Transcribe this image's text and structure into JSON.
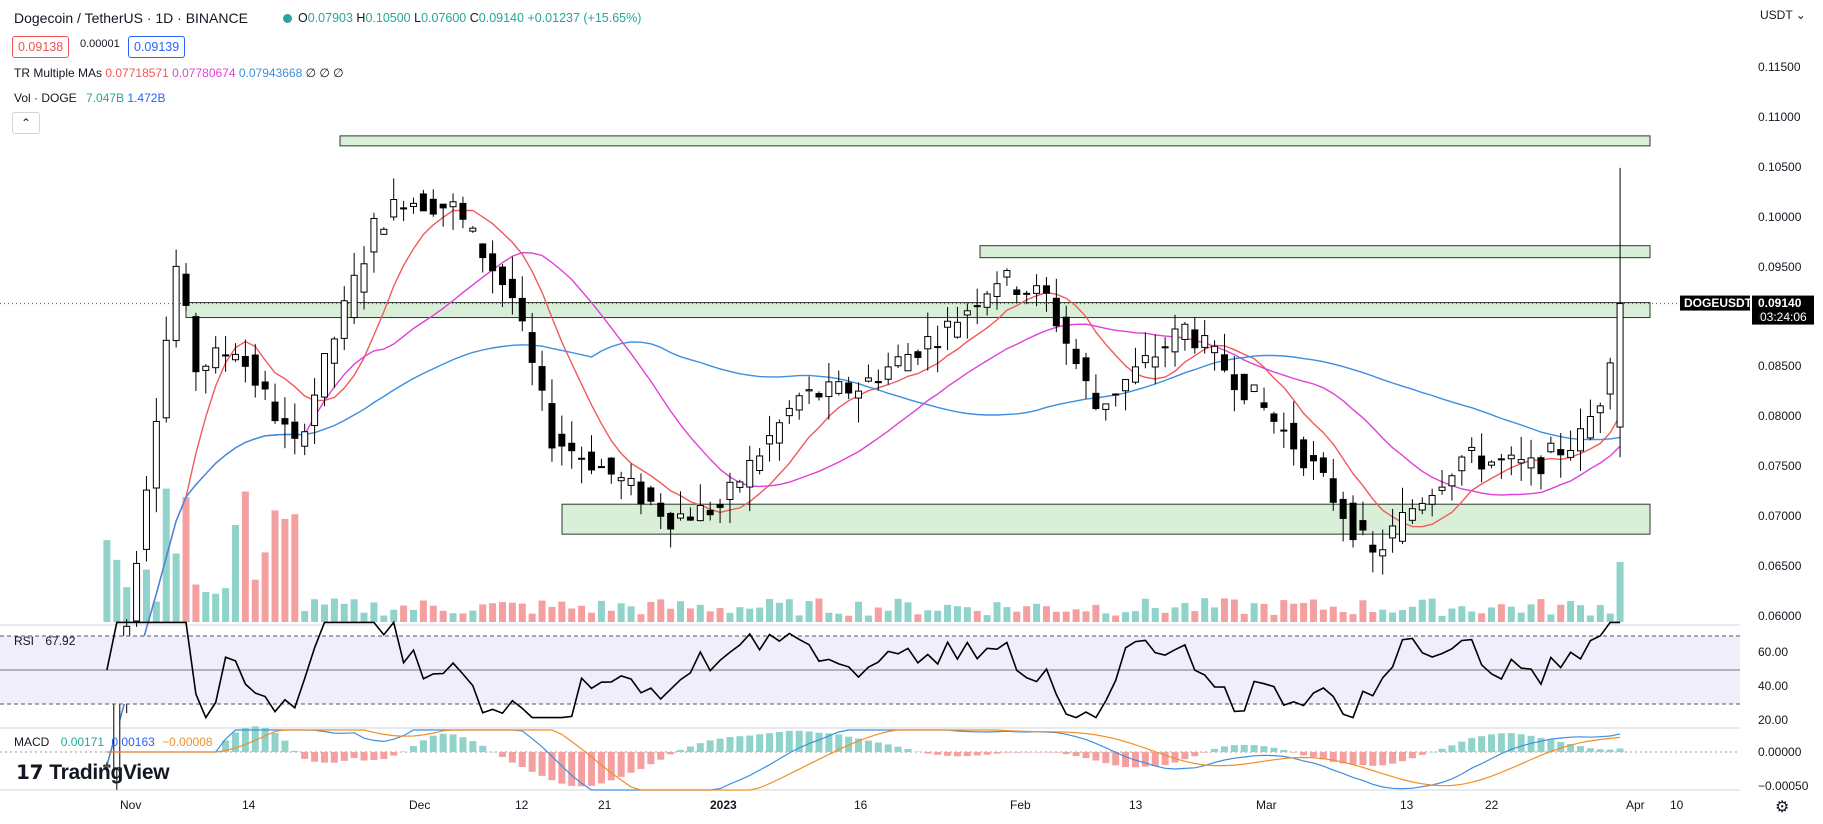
{
  "header": {
    "symbol_title": "Dogecoin / TetherUS · 1D · BINANCE",
    "ohlc": {
      "o_label": "O",
      "o": "0.07903",
      "h_label": "H",
      "h": "0.10500",
      "l_label": "L",
      "l": "0.07600",
      "c_label": "C",
      "c": "0.09140",
      "change": "+0.01237 (+15.65%)"
    },
    "sell_price": "0.09138",
    "spread": "0.00001",
    "buy_price": "0.09139",
    "status_color": "#26a69a"
  },
  "indicators": {
    "ma_label": "TR Multiple MAs",
    "ma_values": [
      "0.07718571",
      "0.07780674",
      "0.07943668"
    ],
    "ma_extra": "∅ ∅ ∅",
    "vol_label": "Vol · DOGE",
    "vol_values": [
      "7.047B",
      "1.472B"
    ],
    "rsi_label": "RSI",
    "rsi_value": "67.92",
    "macd_label": "MACD",
    "macd_values": [
      "0.00171",
      "0.00163",
      "−0.00008"
    ],
    "colors": {
      "ma_fast": "#f05a5a",
      "ma_mid": "#e040d8",
      "ma_slow": "#3d8fe0",
      "up": "#ffffff",
      "down": "#000000",
      "vol_up": "#8fd3cb",
      "vol_down": "#f4a0a0",
      "zone_fill": "#d9efd8",
      "zone_stroke": "#2a3a2a",
      "rsi": "#000000",
      "macd_line": "#3d8fe0",
      "signal_line": "#f0902a"
    }
  },
  "price_axis": {
    "currency": "USDT",
    "ticks": [
      "0.11500",
      "0.11000",
      "0.10500",
      "0.10000",
      "0.09500",
      "0.09000",
      "0.08500",
      "0.08000",
      "0.07500",
      "0.07000",
      "0.06500",
      "0.06000"
    ],
    "last_symbol": "DOGEUSDT",
    "last_price": "0.09140",
    "countdown": "03:24:06"
  },
  "rsi_axis": {
    "ticks": [
      "60.00",
      "40.00",
      "20.00"
    ]
  },
  "macd_axis": {
    "ticks": [
      "0.00000",
      "−0.00050"
    ]
  },
  "time_axis": {
    "labels": [
      "Nov",
      "14",
      "Dec",
      "12",
      "21",
      "2023",
      "16",
      "Feb",
      "13",
      "Mar",
      "13",
      "22",
      "Apr",
      "10"
    ]
  },
  "branding": {
    "logo_text": "TradingView"
  },
  "chart_data": {
    "type": "candlestick",
    "title": "Dogecoin / TetherUS · 1D · BINANCE",
    "x_range": [
      "2022-11-01",
      "2023-04-04"
    ],
    "ylim": [
      0.058,
      0.118
    ],
    "support_resistance_zones": [
      {
        "low": 0.1072,
        "high": 0.1082
      },
      {
        "low": 0.096,
        "high": 0.0972
      },
      {
        "low": 0.09,
        "high": 0.0915
      },
      {
        "low": 0.0683,
        "high": 0.0713
      }
    ],
    "candles_summary": {
      "last": {
        "open": 0.07903,
        "high": 0.105,
        "low": 0.076,
        "close": 0.0914
      }
    },
    "close_points": [
      {
        "x": "2022-11-01",
        "y": 0.045
      },
      {
        "x": "2022-11-08",
        "y": 0.095
      },
      {
        "x": "2022-11-10",
        "y": 0.085
      },
      {
        "x": "2022-11-14",
        "y": 0.087
      },
      {
        "x": "2022-11-20",
        "y": 0.077
      },
      {
        "x": "2022-11-28",
        "y": 0.099
      },
      {
        "x": "2022-12-01",
        "y": 0.102
      },
      {
        "x": "2022-12-06",
        "y": 0.101
      },
      {
        "x": "2022-12-12",
        "y": 0.092
      },
      {
        "x": "2022-12-16",
        "y": 0.078
      },
      {
        "x": "2022-12-21",
        "y": 0.075
      },
      {
        "x": "2022-12-28",
        "y": 0.07
      },
      {
        "x": "2023-01-02",
        "y": 0.071
      },
      {
        "x": "2023-01-10",
        "y": 0.082
      },
      {
        "x": "2023-01-16",
        "y": 0.083
      },
      {
        "x": "2023-01-25",
        "y": 0.089
      },
      {
        "x": "2023-01-30",
        "y": 0.094
      },
      {
        "x": "2023-02-04",
        "y": 0.092
      },
      {
        "x": "2023-02-09",
        "y": 0.081
      },
      {
        "x": "2023-02-18",
        "y": 0.089
      },
      {
        "x": "2023-02-25",
        "y": 0.082
      },
      {
        "x": "2023-03-03",
        "y": 0.075
      },
      {
        "x": "2023-03-09",
        "y": 0.066
      },
      {
        "x": "2023-03-13",
        "y": 0.071
      },
      {
        "x": "2023-03-18",
        "y": 0.076
      },
      {
        "x": "2023-03-25",
        "y": 0.075
      },
      {
        "x": "2023-03-30",
        "y": 0.078
      },
      {
        "x": "2023-04-01",
        "y": 0.082
      },
      {
        "x": "2023-04-03",
        "y": 0.0914
      }
    ]
  }
}
